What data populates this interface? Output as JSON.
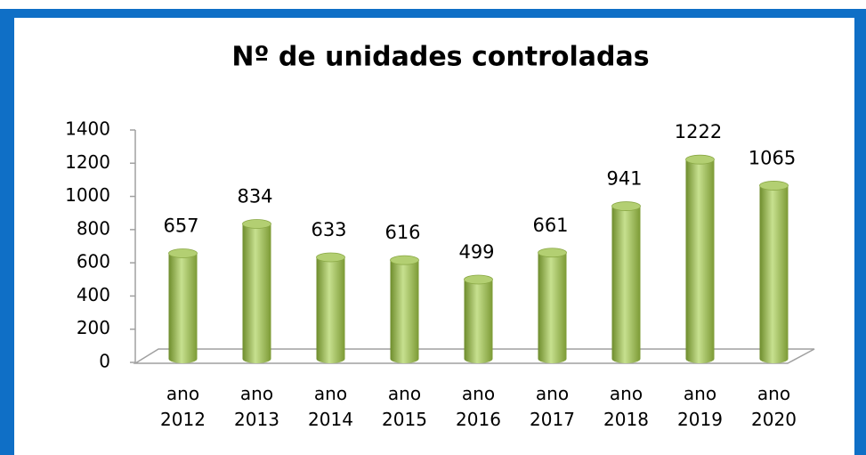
{
  "chart_data": {
    "type": "bar",
    "title": "Nº de unidades controladas",
    "categories": [
      "ano 2012",
      "ano 2013",
      "ano 2014",
      "ano 2015",
      "ano 2016",
      "ano 2017",
      "ano 2018",
      "ano 2019",
      "ano 2020"
    ],
    "values": [
      657,
      834,
      633,
      616,
      499,
      661,
      941,
      1222,
      1065
    ],
    "color": "#9bbb59",
    "ylim": [
      0,
      1400
    ],
    "yticks": [
      0,
      200,
      400,
      600,
      800,
      1000,
      1200,
      1400
    ],
    "grid": false
  }
}
